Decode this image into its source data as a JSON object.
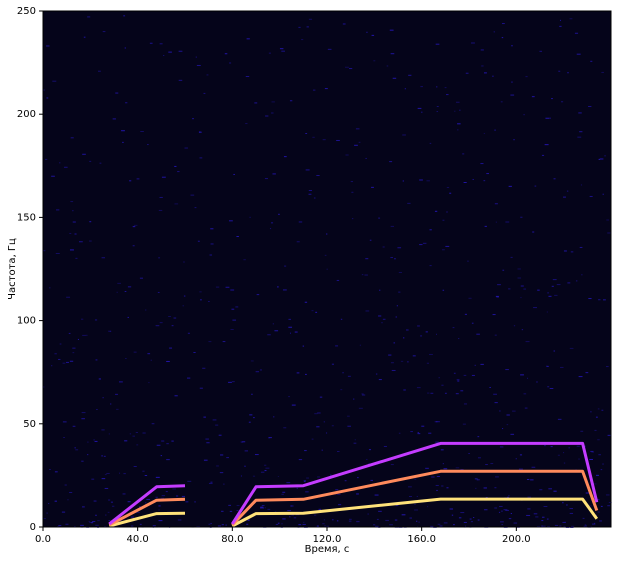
{
  "chart_data": {
    "type": "spectrogram",
    "xlabel": "Время, с",
    "ylabel": "Частота, Гц",
    "xlim": [
      0,
      240
    ],
    "ylim": [
      0,
      250
    ],
    "xticks": [
      {
        "value": 0,
        "label": "0.0"
      },
      {
        "value": 40,
        "label": "40.0"
      },
      {
        "value": 80,
        "label": "80.0"
      },
      {
        "value": 120,
        "label": "120.0"
      },
      {
        "value": 160,
        "label": "160.0"
      },
      {
        "value": 200,
        "label": "200.0"
      }
    ],
    "yticks": [
      0,
      50,
      100,
      150,
      200,
      250
    ],
    "background": "#05041a",
    "x": [
      28,
      48,
      60,
      61,
      80,
      90,
      110,
      168,
      228,
      234
    ],
    "series": [
      {
        "color": "#ffe27a",
        "values": [
          0.5,
          6.5,
          6.7,
          null,
          0.5,
          6.5,
          6.7,
          13.5,
          13.5,
          4
        ]
      },
      {
        "color": "#ff8a5c",
        "values": [
          1,
          13,
          13.4,
          null,
          1,
          13,
          13.4,
          27,
          27,
          8
        ]
      },
      {
        "color": "#c43cff",
        "values": [
          1.5,
          19.5,
          20,
          null,
          1.5,
          19.5,
          20,
          40.5,
          40.5,
          12
        ]
      }
    ]
  }
}
